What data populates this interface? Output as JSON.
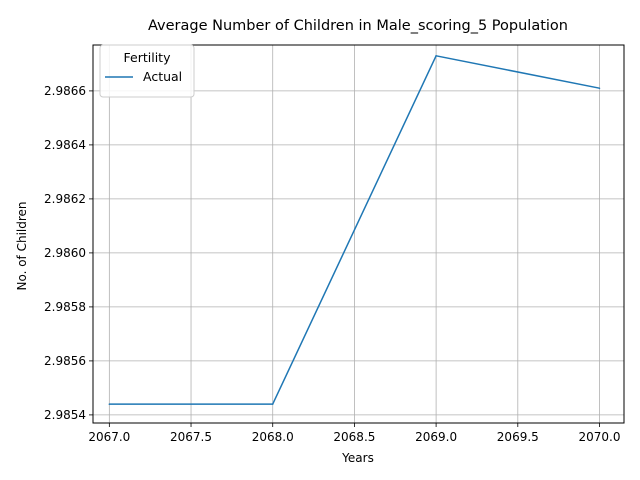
{
  "chart_data": {
    "type": "line",
    "title": "Average Number of Children in Male_scoring_5 Population",
    "xlabel": "Years",
    "ylabel": "No. of Children",
    "xlim": [
      2066.9,
      2070.15
    ],
    "ylim": [
      2.98537,
      2.98677
    ],
    "x_ticks": [
      2067.0,
      2067.5,
      2068.0,
      2068.5,
      2069.0,
      2069.5,
      2070.0
    ],
    "x_tick_labels": [
      "2067.0",
      "2067.5",
      "2068.0",
      "2068.5",
      "2069.0",
      "2069.5",
      "2070.0"
    ],
    "y_ticks": [
      2.9854,
      2.9856,
      2.9858,
      2.986,
      2.9862,
      2.9864,
      2.9866
    ],
    "y_tick_labels": [
      "2.9854",
      "2.9856",
      "2.9858",
      "2.9860",
      "2.9862",
      "2.9864",
      "2.9866"
    ],
    "grid": true,
    "legend": {
      "title": "Fertility",
      "placement": "top-left"
    },
    "series": [
      {
        "name": "Actual",
        "color": "#1f77b4",
        "x": [
          2067,
          2068,
          2069,
          2070
        ],
        "y": [
          2.98544,
          2.98544,
          2.98673,
          2.98661
        ]
      }
    ]
  }
}
